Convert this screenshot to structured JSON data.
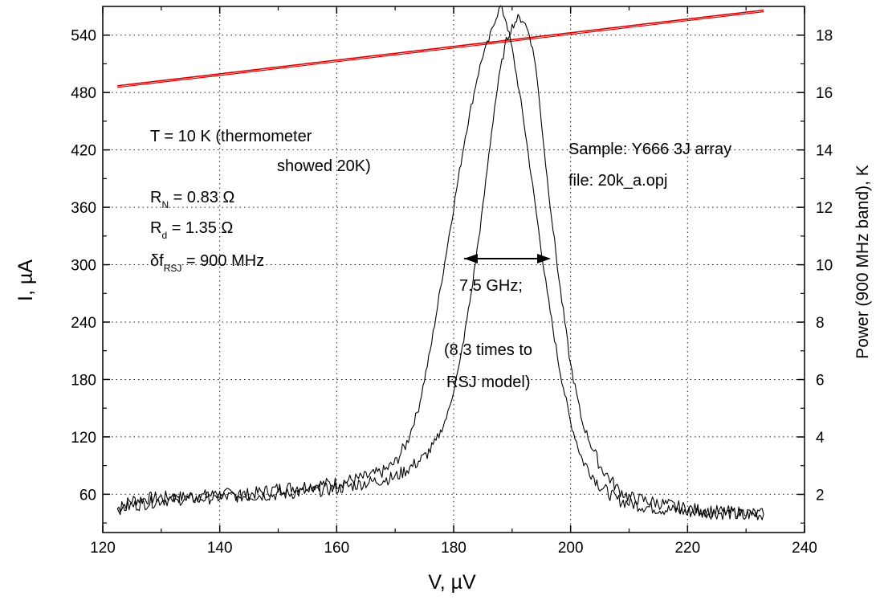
{
  "chart_data": {
    "type": "line",
    "xlabel": "V, µV",
    "ylabel": "I, µA",
    "ylabel_right": "Power (900 MHz band), K",
    "xlim": [
      120,
      240
    ],
    "ylim": [
      20,
      570
    ],
    "ylim_right": [
      0.67,
      19.0
    ],
    "grid": true,
    "x_ticks": [
      "120",
      "140",
      "160",
      "180",
      "200",
      "220",
      "240"
    ],
    "y_ticks": [
      "60",
      "120",
      "180",
      "240",
      "300",
      "360",
      "420",
      "480",
      "540"
    ],
    "y_ticks_right": [
      "2",
      "4",
      "6",
      "8",
      "10",
      "12",
      "14",
      "16",
      "18"
    ],
    "series": [
      {
        "axis": "left",
        "color": "#e00000",
        "x": [
          122.5,
          130,
          140,
          150,
          160,
          170,
          180,
          190,
          200,
          210,
          220,
          230,
          233
        ],
        "y": [
          487,
          492.4,
          499.5,
          506.7,
          513.9,
          521.0,
          528.2,
          535.3,
          542.5,
          549.7,
          556.8,
          564.0,
          566.1
        ]
      },
      {
        "axis": "right",
        "color": "#000000",
        "x": [
          122.5,
          125,
          130,
          135,
          140,
          145,
          150,
          155,
          160,
          165,
          168,
          170,
          172,
          174,
          176,
          178,
          180,
          182,
          184,
          185,
          186,
          187,
          188,
          189,
          190,
          191,
          192,
          194,
          196,
          198,
          200,
          202,
          205,
          208,
          210,
          212,
          215,
          220,
          225,
          230,
          233
        ],
        "y": [
          1.5,
          1.8,
          1.9,
          1.9,
          2.0,
          2.0,
          2.2,
          2.3,
          2.4,
          2.6,
          2.8,
          3.1,
          3.8,
          5.0,
          7.0,
          9.5,
          12.0,
          14.5,
          16.5,
          17.3,
          17.8,
          18.5,
          19.0,
          18.5,
          17.5,
          16.3,
          15.0,
          12.0,
          9.0,
          6.5,
          4.5,
          3.2,
          2.3,
          1.8,
          1.7,
          1.6,
          1.5,
          1.4,
          1.35,
          1.3,
          1.3
        ]
      },
      {
        "axis": "right",
        "color": "#000000",
        "x": [
          122.5,
          130,
          140,
          150,
          160,
          165,
          170,
          173,
          175,
          177,
          179,
          181,
          183,
          185,
          186,
          187,
          188,
          189,
          190,
          191,
          192,
          193,
          194,
          196,
          198,
          200,
          202,
          205,
          208,
          210,
          215,
          220,
          225,
          230,
          233
        ],
        "y": [
          1.5,
          1.8,
          1.9,
          2.0,
          2.2,
          2.4,
          2.6,
          3.0,
          3.3,
          3.8,
          4.8,
          6.5,
          9.0,
          12.0,
          13.8,
          15.5,
          16.8,
          17.8,
          18.3,
          18.6,
          18.5,
          18.0,
          17.0,
          13.0,
          9.5,
          6.5,
          4.5,
          3.0,
          2.2,
          1.9,
          1.7,
          1.5,
          1.4,
          1.35,
          1.3
        ]
      }
    ],
    "annotations": {
      "temp_line1": "T = 10 K (thermometer",
      "temp_line2": "showed 20K)",
      "rn_base": "R",
      "rn_sub": "N",
      "rn_value": " = 0.83 Ω",
      "rd_base": "R",
      "rd_sub": "d",
      "rd_value": " = 1.35 Ω",
      "df_base": "δf",
      "df_sub": "RSJ",
      "df_value": " = 900 MHz",
      "sample": "Sample: Y666 3J array",
      "file": "file: 20k_a.opj",
      "width_label": "7.5 GHz;",
      "ratio_line1": "(8.3 times to",
      "ratio_line2": "RSJ model)"
    }
  }
}
